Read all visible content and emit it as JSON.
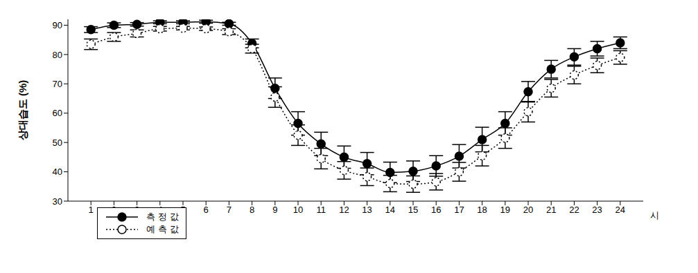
{
  "chart_data": {
    "type": "line",
    "x_label": "시",
    "y_label": "상대습도 (%)",
    "x": [
      1,
      2,
      3,
      4,
      5,
      6,
      7,
      8,
      9,
      10,
      11,
      12,
      13,
      14,
      15,
      16,
      17,
      18,
      19,
      20,
      21,
      22,
      23,
      24
    ],
    "xlim": [
      0,
      25
    ],
    "xticks": [
      1,
      2,
      3,
      4,
      5,
      6,
      7,
      8,
      9,
      10,
      11,
      12,
      13,
      14,
      15,
      16,
      17,
      18,
      19,
      20,
      21,
      22,
      23,
      24
    ],
    "ylim": [
      30,
      92
    ],
    "yticks": [
      30,
      40,
      50,
      60,
      70,
      80,
      90
    ],
    "grid": false,
    "legend": "lower left",
    "series": [
      {
        "name": "측 정 값",
        "color": "#000000",
        "marker": "filled circle",
        "line_style": "solid",
        "values": [
          88.5,
          90,
          90.3,
          91,
          91,
          91.2,
          90.5,
          83.8,
          68.5,
          56.5,
          49.5,
          45,
          42.8,
          39.8,
          40.2,
          42,
          45.3,
          51,
          56.5,
          67.3,
          75,
          79.2,
          82,
          84
        ],
        "errors": [
          1,
          0.8,
          0.6,
          0.5,
          0.5,
          0.5,
          0.5,
          1.5,
          3.5,
          4,
          4,
          3.8,
          3.8,
          3.5,
          3.5,
          3.5,
          4,
          4.2,
          4,
          3.5,
          3,
          2.8,
          2.5,
          2
        ]
      },
      {
        "name": "예 측 값",
        "color": "#000000",
        "marker": "open circle",
        "line_style": "dotted",
        "values": [
          83.5,
          86,
          87.2,
          88.8,
          89,
          88.8,
          87.8,
          82,
          65.5,
          52.5,
          44.5,
          40.5,
          38.3,
          36,
          35.8,
          36.6,
          40,
          45.5,
          51.5,
          60.5,
          68.5,
          73,
          76.3,
          79
        ],
        "errors": [
          1.8,
          1.5,
          1.2,
          0.8,
          0.6,
          0.6,
          1,
          1.5,
          3.5,
          3.5,
          3.5,
          3,
          3,
          2.8,
          2.8,
          2.8,
          3.2,
          3.5,
          3.5,
          3.5,
          3,
          3,
          2.5,
          2.3
        ]
      }
    ]
  }
}
